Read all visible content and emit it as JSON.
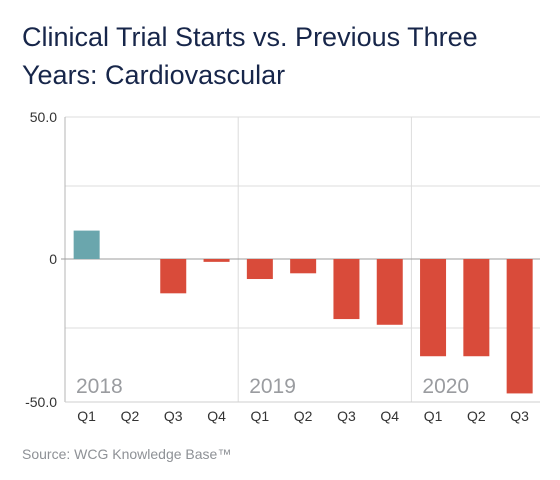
{
  "title": "Clinical Trial Starts vs. Previous Three Years: Cardiovascular",
  "source": "Source: WCG Knowledge Base™",
  "colors": {
    "positive": "#6aa6ad",
    "negative": "#d94b3a",
    "year_label": "#9a9ca0",
    "axis_text": "#333333",
    "grid": "#dcdcdc"
  },
  "chart_data": {
    "type": "bar",
    "categories": [
      "Q1",
      "Q2",
      "Q3",
      "Q4",
      "Q1",
      "Q2",
      "Q3",
      "Q4",
      "Q1",
      "Q2",
      "Q3"
    ],
    "values": [
      10,
      0,
      -12,
      -1,
      -7,
      -5,
      -21,
      -23,
      -34,
      -34,
      -47
    ],
    "year_groups": [
      {
        "label": "2018",
        "start_index": 0
      },
      {
        "label": "2019",
        "start_index": 4
      },
      {
        "label": "2020",
        "start_index": 8
      }
    ],
    "y_ticks": [
      {
        "value": 50,
        "label": "50.0"
      },
      {
        "value": 0,
        "label": "0"
      },
      {
        "value": -50,
        "label": "-50.0"
      }
    ],
    "ylim": [
      -50,
      50
    ],
    "grid": true
  }
}
